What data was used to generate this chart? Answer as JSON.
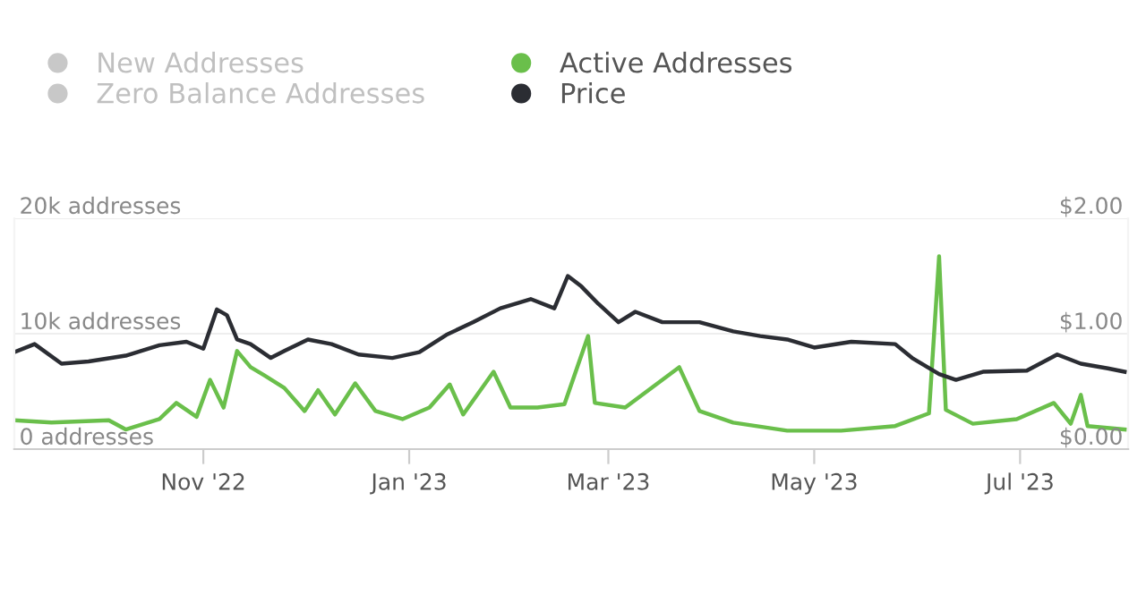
{
  "chart_data": {
    "type": "line",
    "legend": "top left",
    "grid": "y",
    "xlim": [
      "2022-09-06",
      "2023-08-02"
    ],
    "xticks": [
      {
        "value": "2022-11-01",
        "label": "Nov '22"
      },
      {
        "value": "2023-01-01",
        "label": "Jan '23"
      },
      {
        "value": "2023-03-01",
        "label": "Mar '23"
      },
      {
        "value": "2023-05-01",
        "label": "May '23"
      },
      {
        "value": "2023-07-01",
        "label": "Jul '23"
      }
    ],
    "ylim": [
      0,
      20000
    ],
    "yticks": [
      {
        "value": 0,
        "label": "0 addresses"
      },
      {
        "value": 10000,
        "label": "10k addresses"
      },
      {
        "value": 20000,
        "label": "20k addresses"
      }
    ],
    "y2lim": [
      0,
      2
    ],
    "y2ticks": [
      {
        "value": 0,
        "label": "$0.00"
      },
      {
        "value": 1,
        "label": "$1.00"
      },
      {
        "value": 2,
        "label": "$2.00"
      }
    ],
    "series": [
      {
        "name": "New Addresses",
        "color": "#c8c8c8"
      },
      {
        "name": "Zero Balance Addresses",
        "color": "#c8c8c8"
      },
      {
        "name": "Active Addresses",
        "color": "#6abf4b",
        "x": [
          "2022-09-06",
          "2022-09-17",
          "2022-10-04",
          "2022-10-09",
          "2022-10-19",
          "2022-10-24",
          "2022-10-30",
          "2022-11-03",
          "2022-11-07",
          "2022-11-11",
          "2022-11-15",
          "2022-11-19",
          "2022-11-25",
          "2022-12-01",
          "2022-12-05",
          "2022-12-10",
          "2022-12-16",
          "2022-12-22",
          "2022-12-30",
          "2023-01-07",
          "2023-01-13",
          "2023-01-17",
          "2023-01-26",
          "2023-01-31",
          "2023-02-08",
          "2023-02-16",
          "2023-02-23",
          "2023-02-25",
          "2023-03-06",
          "2023-03-22",
          "2023-03-28",
          "2023-04-07",
          "2023-04-23",
          "2023-05-09",
          "2023-05-25",
          "2023-06-04",
          "2023-06-07",
          "2023-06-09",
          "2023-06-17",
          "2023-06-30",
          "2023-07-11",
          "2023-07-16",
          "2023-07-19",
          "2023-07-21",
          "2023-08-01"
        ],
        "values": [
          2500,
          2300,
          2500,
          1700,
          2600,
          4000,
          2800,
          6000,
          3600,
          8500,
          7100,
          6400,
          5300,
          3300,
          5100,
          3000,
          5700,
          3300,
          2600,
          3600,
          5600,
          3000,
          6700,
          3600,
          3600,
          3900,
          9800,
          4000,
          3600,
          7100,
          3300,
          2300,
          1600,
          1600,
          2000,
          3100,
          16700,
          3400,
          2200,
          2600,
          4000,
          2200,
          4700,
          2000,
          1700
        ]
      },
      {
        "name": "Price",
        "color": "#2b2d33",
        "axis": "y2",
        "x": [
          "2022-09-06",
          "2022-09-12",
          "2022-09-20",
          "2022-09-28",
          "2022-10-09",
          "2022-10-19",
          "2022-10-27",
          "2022-11-01",
          "2022-11-05",
          "2022-11-08",
          "2022-11-11",
          "2022-11-15",
          "2022-11-21",
          "2022-11-25",
          "2022-12-02",
          "2022-12-09",
          "2022-12-17",
          "2022-12-27",
          "2023-01-04",
          "2023-01-12",
          "2023-01-20",
          "2023-01-28",
          "2023-02-06",
          "2023-02-13",
          "2023-02-17",
          "2023-02-21",
          "2023-02-26",
          "2023-03-04",
          "2023-03-09",
          "2023-03-17",
          "2023-03-28",
          "2023-04-07",
          "2023-04-15",
          "2023-04-23",
          "2023-05-01",
          "2023-05-12",
          "2023-05-25",
          "2023-05-30",
          "2023-06-07",
          "2023-06-12",
          "2023-06-20",
          "2023-07-03",
          "2023-07-12",
          "2023-07-19",
          "2023-07-27",
          "2023-08-01"
        ],
        "values": [
          0.84,
          0.91,
          0.74,
          0.76,
          0.81,
          0.9,
          0.93,
          0.87,
          1.21,
          1.16,
          0.95,
          0.91,
          0.79,
          0.85,
          0.95,
          0.91,
          0.82,
          0.79,
          0.84,
          0.99,
          1.1,
          1.22,
          1.3,
          1.22,
          1.5,
          1.41,
          1.26,
          1.1,
          1.19,
          1.1,
          1.1,
          1.02,
          0.98,
          0.95,
          0.88,
          0.93,
          0.91,
          0.79,
          0.65,
          0.6,
          0.67,
          0.68,
          0.82,
          0.74,
          0.7,
          0.67
        ]
      }
    ]
  }
}
